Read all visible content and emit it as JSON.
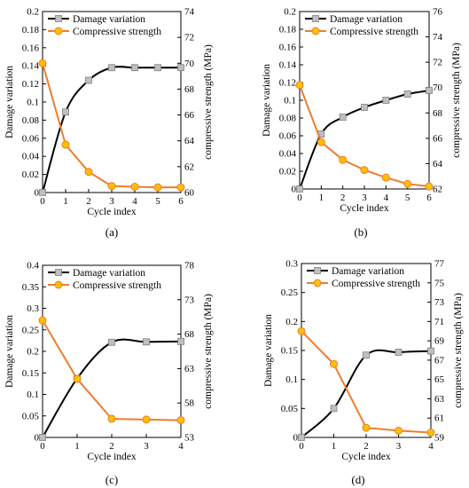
{
  "colors": {
    "damage_line": "#000000",
    "damage_marker": "#bfbfbf",
    "strength_line": "#ed7d31",
    "strength_marker": "#ffc000"
  },
  "chart_data": [
    {
      "type": "line",
      "panel_label": "(a)",
      "xlabel": "Cycle index",
      "ylabel": "Damage variation",
      "y2label": "compressive strength (MPa)",
      "x_ticks": [
        0,
        1,
        2,
        3,
        4,
        5,
        6
      ],
      "xlim": [
        0,
        6
      ],
      "ylim": [
        0,
        0.2
      ],
      "y_ticks": [
        0,
        0.02,
        0.04,
        0.06,
        0.08,
        0.1,
        0.12,
        0.14,
        0.16,
        0.18,
        0.2
      ],
      "y_tick_labels": [
        "0",
        "0.02",
        "0.04",
        "0.06",
        "0.08",
        "0.1",
        "0.12",
        "0.14",
        "0.16",
        "0.18",
        "0.2"
      ],
      "y2lim": [
        60,
        74
      ],
      "y2_ticks": [
        60,
        62,
        64,
        66,
        68,
        70,
        72,
        74
      ],
      "legend_position": "top-left",
      "grid": false,
      "series": [
        {
          "name": "Damage variation",
          "axis": "left",
          "x": [
            0,
            1,
            2,
            3,
            4,
            5,
            6
          ],
          "values": [
            0,
            0.089,
            0.124,
            0.138,
            0.138,
            0.138,
            0.138
          ]
        },
        {
          "name": "Compressive strength",
          "axis": "right",
          "x": [
            0,
            1,
            2,
            3,
            4,
            5,
            6
          ],
          "values": [
            70.0,
            63.7,
            61.6,
            60.5,
            60.45,
            60.4,
            60.4
          ]
        }
      ]
    },
    {
      "type": "line",
      "panel_label": "(b)",
      "xlabel": "Cycle index",
      "ylabel": "Damage variation",
      "y2label": "compressive strength (MPa)",
      "x_ticks": [
        0,
        1,
        2,
        3,
        4,
        5,
        6
      ],
      "xlim": [
        0,
        6
      ],
      "ylim": [
        0,
        0.2
      ],
      "y_ticks": [
        0,
        0.02,
        0.04,
        0.06,
        0.08,
        0.1,
        0.12,
        0.14,
        0.16,
        0.18,
        0.2
      ],
      "y_tick_labels": [
        "0",
        "0.02",
        "0.04",
        "0.06",
        "0.08",
        "0.1",
        "0.12",
        "0.14",
        "0.16",
        "0.18",
        "0.2"
      ],
      "y2lim": [
        62,
        76
      ],
      "y2_ticks": [
        62,
        64,
        66,
        68,
        70,
        72,
        74,
        76
      ],
      "legend_position": "top-left",
      "grid": false,
      "series": [
        {
          "name": "Damage variation",
          "axis": "left",
          "x": [
            0,
            1,
            2,
            3,
            4,
            5,
            6
          ],
          "values": [
            0,
            0.062,
            0.081,
            0.092,
            0.1,
            0.107,
            0.111
          ]
        },
        {
          "name": "Compressive strength",
          "axis": "right",
          "x": [
            0,
            1,
            2,
            3,
            4,
            5,
            6
          ],
          "values": [
            70.2,
            65.7,
            64.3,
            63.5,
            62.9,
            62.4,
            62.2
          ]
        }
      ]
    },
    {
      "type": "line",
      "panel_label": "(c)",
      "xlabel": "Cycle index",
      "ylabel": "Damage variation",
      "y2label": "compressive strength (MPa)",
      "x_ticks": [
        0,
        1,
        2,
        3,
        4
      ],
      "xlim": [
        0,
        4
      ],
      "ylim": [
        0,
        0.4
      ],
      "y_ticks": [
        0,
        0.05,
        0.1,
        0.15,
        0.2,
        0.25,
        0.3,
        0.35,
        0.4
      ],
      "y_tick_labels": [
        "0",
        "0.05",
        "0.1",
        "0.15",
        "0.2",
        "0.25",
        "0.3",
        "0.35",
        "0.4"
      ],
      "y2lim": [
        53,
        78
      ],
      "y2_ticks": [
        53,
        58,
        63,
        68,
        73,
        78
      ],
      "legend_position": "top-left",
      "grid": false,
      "series": [
        {
          "name": "Damage variation",
          "axis": "left",
          "x": [
            0,
            1,
            2,
            3,
            4
          ],
          "values": [
            0,
            0.137,
            0.221,
            0.222,
            0.223
          ]
        },
        {
          "name": "Compressive strength",
          "axis": "right",
          "x": [
            0,
            1,
            2,
            3,
            4
          ],
          "values": [
            70.0,
            61.5,
            55.7,
            55.6,
            55.5
          ]
        }
      ]
    },
    {
      "type": "line",
      "panel_label": "(d)",
      "xlabel": "Cycle index",
      "ylabel": "Damage variation",
      "y2label": "compressive strength (MPa)",
      "x_ticks": [
        0,
        1,
        2,
        3,
        4
      ],
      "xlim": [
        0,
        4
      ],
      "ylim": [
        0,
        0.3
      ],
      "y_ticks": [
        0,
        0.05,
        0.1,
        0.15,
        0.2,
        0.25,
        0.3
      ],
      "y_tick_labels": [
        "0",
        "0.05",
        "0.1",
        "0.15",
        "0.2",
        "0.25",
        "0.3"
      ],
      "y2lim": [
        59,
        77
      ],
      "y2_ticks": [
        59,
        61,
        63,
        65,
        67,
        69,
        71,
        73,
        75,
        77
      ],
      "legend_position": "top-left",
      "grid": false,
      "series": [
        {
          "name": "Damage variation",
          "axis": "left",
          "x": [
            0,
            1,
            2,
            3,
            4
          ],
          "values": [
            0,
            0.05,
            0.142,
            0.147,
            0.149
          ]
        },
        {
          "name": "Compressive strength",
          "axis": "right",
          "x": [
            0,
            1,
            2,
            3,
            4
          ],
          "values": [
            70.0,
            66.6,
            60.0,
            59.7,
            59.5
          ]
        }
      ]
    }
  ]
}
